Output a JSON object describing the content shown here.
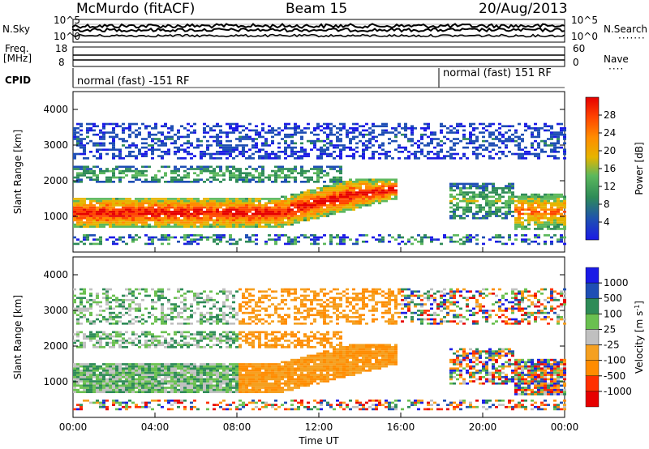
{
  "header": {
    "title": "McMurdo (fitACF)",
    "beam": "Beam 15",
    "date": "20/Aug/2013"
  },
  "panels": {
    "nsky_label": "N.Sky",
    "nsearch_label": "N.Search",
    "nsearch_ticks": [
      "10^5",
      "10^0"
    ],
    "nsky_ticks": [
      "10^5",
      "10^0"
    ],
    "freq_label": "Freq.",
    "freq_unit": "[MHz]",
    "freq_ticks": [
      "18",
      "8"
    ],
    "nave_label": "Nave",
    "nave_ticks": [
      "60",
      "0"
    ],
    "cpid_label": "CPID",
    "cpid_modes": [
      "normal (fast) -151 RF",
      "normal (fast) 151 RF"
    ]
  },
  "colors": {
    "power": [
      "#1a1ae6",
      "#1e4eb4",
      "#2e8b57",
      "#5cb85c",
      "#e6b400",
      "#ff8c00",
      "#ff4500",
      "#e60000"
    ],
    "velocity": [
      "#1a1ae6",
      "#1e4eb4",
      "#2e8b57",
      "#6ac050",
      "#c0c0c0",
      "#f5a020",
      "#ff8c00",
      "#ff3000",
      "#e60000"
    ]
  },
  "chart_data": [
    {
      "type": "heatmap",
      "title": "",
      "ylabel": "Slant Range [km]",
      "xlabel": "",
      "x_ticks": [
        "00:00",
        "04:00",
        "08:00",
        "12:00",
        "16:00",
        "20:00",
        "00:00"
      ],
      "y_ticks": [
        "1000",
        "2000",
        "3000",
        "4000"
      ],
      "ylim": [
        0,
        4500
      ],
      "colorbar": {
        "label": "Power [dB]",
        "ticks": [
          "28",
          "24",
          "20",
          "16",
          "12",
          "8",
          "4"
        ],
        "range": [
          0,
          32
        ]
      }
    },
    {
      "type": "heatmap",
      "title": "",
      "ylabel": "Slant Range [km]",
      "xlabel": "Time UT",
      "x_ticks": [
        "00:00",
        "04:00",
        "08:00",
        "12:00",
        "16:00",
        "20:00",
        "00:00"
      ],
      "y_ticks": [
        "1000",
        "2000",
        "3000",
        "4000"
      ],
      "ylim": [
        0,
        4500
      ],
      "colorbar": {
        "label": "Velocity [m s",
        "label_sup": "-1",
        "label_end": "]",
        "ticks": [
          "1000",
          "500",
          "100",
          "25",
          "-25",
          "-100",
          "-500",
          "-1000"
        ]
      }
    }
  ]
}
